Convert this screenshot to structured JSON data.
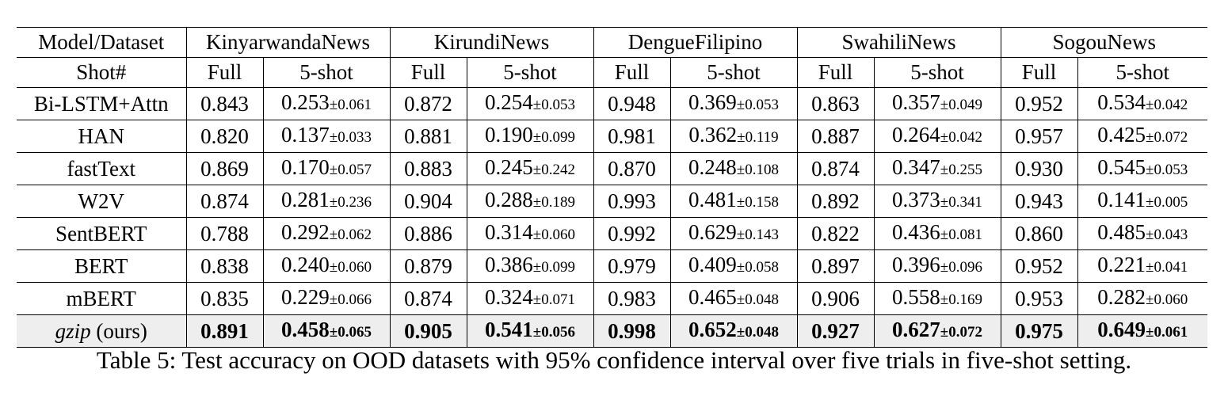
{
  "table": {
    "corner_label": "Model/Dataset",
    "shot_label": "Shot#",
    "datasets": [
      "KinyarwandaNews",
      "KirundiNews",
      "DengueFilipino",
      "SwahiliNews",
      "SogouNews"
    ],
    "shots": [
      "Full",
      "5-shot"
    ],
    "rows": [
      {
        "model": "Bi-LSTM+Attn",
        "cells": [
          {
            "full": "0.843",
            "five": "0.253",
            "ci": "±0.061"
          },
          {
            "full": "0.872",
            "five": "0.254",
            "ci": "±0.053"
          },
          {
            "full": "0.948",
            "five": "0.369",
            "ci": "±0.053"
          },
          {
            "full": "0.863",
            "five": "0.357",
            "ci": "±0.049"
          },
          {
            "full": "0.952",
            "five": "0.534",
            "ci": "±0.042"
          }
        ]
      },
      {
        "model": "HAN",
        "cells": [
          {
            "full": "0.820",
            "five": "0.137",
            "ci": "±0.033"
          },
          {
            "full": "0.881",
            "five": "0.190",
            "ci": "±0.099"
          },
          {
            "full": "0.981",
            "five": "0.362",
            "ci": "±0.119"
          },
          {
            "full": "0.887",
            "five": "0.264",
            "ci": "±0.042"
          },
          {
            "full": "0.957",
            "five": "0.425",
            "ci": "±0.072"
          }
        ]
      },
      {
        "model": "fastText",
        "cells": [
          {
            "full": "0.869",
            "five": "0.170",
            "ci": "±0.057"
          },
          {
            "full": "0.883",
            "five": "0.245",
            "ci": "±0.242"
          },
          {
            "full": "0.870",
            "five": "0.248",
            "ci": "±0.108"
          },
          {
            "full": "0.874",
            "five": "0.347",
            "ci": "±0.255"
          },
          {
            "full": "0.930",
            "five": "0.545",
            "ci": "±0.053"
          }
        ]
      },
      {
        "model": "W2V",
        "cells": [
          {
            "full": "0.874",
            "five": "0.281",
            "ci": "±0.236"
          },
          {
            "full": "0.904",
            "five": "0.288",
            "ci": "±0.189"
          },
          {
            "full": "0.993",
            "five": "0.481",
            "ci": "±0.158"
          },
          {
            "full": "0.892",
            "five": "0.373",
            "ci": "±0.341"
          },
          {
            "full": "0.943",
            "five": "0.141",
            "ci": "±0.005"
          }
        ]
      },
      {
        "model": "SentBERT",
        "cells": [
          {
            "full": "0.788",
            "five": "0.292",
            "ci": "±0.062"
          },
          {
            "full": "0.886",
            "five": "0.314",
            "ci": "±0.060"
          },
          {
            "full": "0.992",
            "five": "0.629",
            "ci": "±0.143"
          },
          {
            "full": "0.822",
            "five": "0.436",
            "ci": "±0.081"
          },
          {
            "full": "0.860",
            "five": "0.485",
            "ci": "±0.043"
          }
        ]
      },
      {
        "model": "BERT",
        "cells": [
          {
            "full": "0.838",
            "five": "0.240",
            "ci": "±0.060"
          },
          {
            "full": "0.879",
            "five": "0.386",
            "ci": "±0.099"
          },
          {
            "full": "0.979",
            "five": "0.409",
            "ci": "±0.058"
          },
          {
            "full": "0.897",
            "five": "0.396",
            "ci": "±0.096"
          },
          {
            "full": "0.952",
            "five": "0.221",
            "ci": "±0.041"
          }
        ]
      },
      {
        "model": "mBERT",
        "cells": [
          {
            "full": "0.835",
            "five": "0.229",
            "ci": "±0.066"
          },
          {
            "full": "0.874",
            "five": "0.324",
            "ci": "±0.071"
          },
          {
            "full": "0.983",
            "five": "0.465",
            "ci": "±0.048"
          },
          {
            "full": "0.906",
            "five": "0.558",
            "ci": "±0.169"
          },
          {
            "full": "0.953",
            "five": "0.282",
            "ci": "±0.060"
          }
        ]
      }
    ],
    "ours": {
      "model_italic": "gzip",
      "model_suffix": " (ours)",
      "cells": [
        {
          "full": "0.891",
          "five": "0.458",
          "ci": "±0.065"
        },
        {
          "full": "0.905",
          "five": "0.541",
          "ci": "±0.056"
        },
        {
          "full": "0.998",
          "five": "0.652",
          "ci": "±0.048"
        },
        {
          "full": "0.927",
          "five": "0.627",
          "ci": "±0.072"
        },
        {
          "full": "0.975",
          "five": "0.649",
          "ci": "±0.061"
        }
      ]
    },
    "highlight_color": "#eeeeee"
  },
  "caption": "Table 5: Test accuracy on OOD datasets with 95% confidence interval over five trials in five-shot setting."
}
